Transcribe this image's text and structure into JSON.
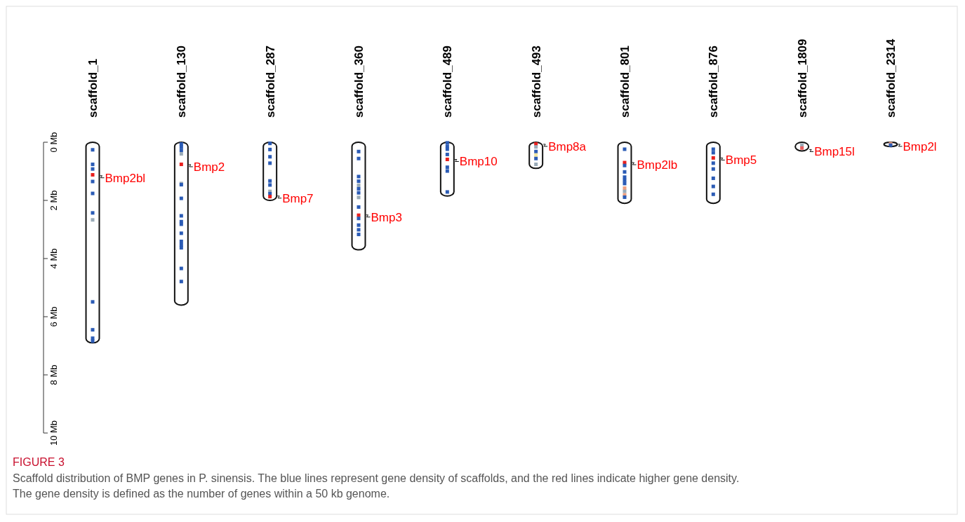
{
  "chart_data": {
    "type": "bar",
    "categories": [
      "scaffold_1",
      "scaffold_130",
      "scaffold_287",
      "scaffold_360",
      "scaffold_489",
      "scaffold_493",
      "scaffold_801",
      "scaffold_876",
      "scaffold_1809",
      "scaffold_2314"
    ],
    "ylim": [
      10,
      0
    ],
    "yticks": [
      {
        "value": 0,
        "label": "0 Mb"
      },
      {
        "value": 2,
        "label": "2 Mb"
      },
      {
        "value": 4,
        "label": "4 Mb"
      },
      {
        "value": 6,
        "label": "6 Mb"
      },
      {
        "value": 8,
        "label": "8 Mb"
      },
      {
        "value": 10,
        "label": "10 Mb"
      }
    ],
    "series": [
      {
        "type": "bar",
        "color": "#ffffff",
        "values": [
          6.9,
          5.6,
          2.0,
          3.7,
          1.85,
          0.9,
          2.1,
          2.1,
          0.3,
          0.15
        ]
      },
      {
        "type": "scatter",
        "marker": "square",
        "x": [
          "scaffold_1",
          "scaffold_1",
          "scaffold_1",
          "scaffold_1",
          "scaffold_1",
          "scaffold_1",
          "scaffold_1",
          "scaffold_1",
          "scaffold_1",
          "scaffold_1",
          "scaffold_1",
          "scaffold_1",
          "scaffold_130",
          "scaffold_130",
          "scaffold_130",
          "scaffold_130",
          "scaffold_130",
          "scaffold_130",
          "scaffold_130",
          "scaffold_130",
          "scaffold_130",
          "scaffold_130",
          "scaffold_130",
          "scaffold_130",
          "scaffold_130",
          "scaffold_130",
          "scaffold_130",
          "scaffold_130",
          "scaffold_130",
          "scaffold_287",
          "scaffold_287",
          "scaffold_287",
          "scaffold_287",
          "scaffold_287",
          "scaffold_287",
          "scaffold_287",
          "scaffold_287",
          "scaffold_287",
          "scaffold_360",
          "scaffold_360",
          "scaffold_360",
          "scaffold_360",
          "scaffold_360",
          "scaffold_360",
          "scaffold_360",
          "scaffold_360",
          "scaffold_360",
          "scaffold_360",
          "scaffold_360",
          "scaffold_360",
          "scaffold_360",
          "scaffold_360",
          "scaffold_489",
          "scaffold_489",
          "scaffold_489",
          "scaffold_489",
          "scaffold_489",
          "scaffold_489",
          "scaffold_489",
          "scaffold_489",
          "scaffold_493",
          "scaffold_493",
          "scaffold_493",
          "scaffold_493",
          "scaffold_493",
          "scaffold_493",
          "scaffold_801",
          "scaffold_801",
          "scaffold_801",
          "scaffold_801",
          "scaffold_801",
          "scaffold_801",
          "scaffold_801",
          "scaffold_801",
          "scaffold_801",
          "scaffold_801",
          "scaffold_801",
          "scaffold_876",
          "scaffold_876",
          "scaffold_876",
          "scaffold_876",
          "scaffold_876",
          "scaffold_876",
          "scaffold_876",
          "scaffold_876",
          "scaffold_1809",
          "scaffold_1809",
          "scaffold_2314",
          "scaffold_2314"
        ],
        "values": [
          0.26,
          0.76,
          0.92,
          1.12,
          1.35,
          1.76,
          2.43,
          2.67,
          5.49,
          6.45,
          6.74,
          6.84,
          0.06,
          0.16,
          0.28,
          0.4,
          0.76,
          1.42,
          1.46,
          1.93,
          2.53,
          2.73,
          2.82,
          3.13,
          3.41,
          3.53,
          3.63,
          4.34,
          4.79,
          0.04,
          0.25,
          0.5,
          0.72,
          1.33,
          1.47,
          1.69,
          1.77,
          1.87,
          0.32,
          0.56,
          1.18,
          1.34,
          1.48,
          1.6,
          1.74,
          1.9,
          2.23,
          2.51,
          2.62,
          2.85,
          3.01,
          3.17,
          0.02,
          0.14,
          0.24,
          0.42,
          0.59,
          0.86,
          0.99,
          1.71,
          0.06,
          0.16,
          0.32,
          0.44,
          0.56,
          0.76,
          0.24,
          0.7,
          0.8,
          1.02,
          1.2,
          1.31,
          1.42,
          1.58,
          1.69,
          1.81,
          1.89,
          0.24,
          0.36,
          0.54,
          0.72,
          0.92,
          1.24,
          1.52,
          1.79,
          0.1,
          0.2,
          0.05,
          0.1
        ],
        "colors": [
          "#2b5bb5",
          "#2b5bb5",
          "#2b5bb5",
          "#e8201e",
          "#2b5bb5",
          "#2b5bb5",
          "#2b5bb5",
          "#9aabb8",
          "#2b5bb5",
          "#2b5bb5",
          "#2b5bb5",
          "#2b5bb5",
          "#2b5bb5",
          "#2b5bb5",
          "#2b5bb5",
          "#9aabb8",
          "#e8201e",
          "#9aabb8",
          "#2b5bb5",
          "#2b5bb5",
          "#2b5bb5",
          "#2b5bb5",
          "#2b5bb5",
          "#2b5bb5",
          "#2b5bb5",
          "#2b5bb5",
          "#2b5bb5",
          "#2b5bb5",
          "#2b5bb5",
          "#2b5bb5",
          "#2b5bb5",
          "#2b5bb5",
          "#2b5bb5",
          "#2b5bb5",
          "#2b5bb5",
          "#9aabb8",
          "#2b5bb5",
          "#e8201e",
          "#2b5bb5",
          "#2b5bb5",
          "#2b5bb5",
          "#2b5bb5",
          "#9aabb8",
          "#2b5bb5",
          "#2b5bb5",
          "#9aabb8",
          "#2b5bb5",
          "#e8201e",
          "#2b5bb5",
          "#2b5bb5",
          "#2b5bb5",
          "#2b5bb5",
          "#2b5bb5",
          "#2b5bb5",
          "#2b5bb5",
          "#2b5bb5",
          "#e8201e",
          "#2b5bb5",
          "#2b5bb5",
          "#2b5bb5",
          "#e8201e",
          "#9aabb8",
          "#2b5bb5",
          "#f0e6a0",
          "#2b5bb5",
          "#9aabb8",
          "#2b5bb5",
          "#e8201e",
          "#2b5bb5",
          "#2b5bb5",
          "#2b5bb5",
          "#2b5bb5",
          "#2b5bb5",
          "#f0a080",
          "#9aabb8",
          "#f0a080",
          "#2b5bb5",
          "#2b5bb5",
          "#2b5bb5",
          "#e8201e",
          "#2b5bb5",
          "#2b5bb5",
          "#2b5bb5",
          "#2b5bb5",
          "#2b5bb5",
          "#9aabb8",
          "#e86060",
          "#f0a080",
          "#2b5bb5"
        ]
      }
    ],
    "annotations": [
      {
        "text": "Bmp2bl",
        "x": "scaffold_1",
        "y": 1.15
      },
      {
        "text": "Bmp2",
        "x": "scaffold_130",
        "y": 0.77
      },
      {
        "text": "Bmp7",
        "x": "scaffold_287",
        "y": 1.85
      },
      {
        "text": "Bmp3",
        "x": "scaffold_360",
        "y": 2.5
      },
      {
        "text": "Bmp10",
        "x": "scaffold_489",
        "y": 0.59
      },
      {
        "text": "Bmp8a",
        "x": "scaffold_493",
        "y": 0.07
      },
      {
        "text": "Bmp2lb",
        "x": "scaffold_801",
        "y": 0.7
      },
      {
        "text": "Bmp5",
        "x": "scaffold_876",
        "y": 0.54
      },
      {
        "text": "Bmp15l",
        "x": "scaffold_1809",
        "y": 0.25
      },
      {
        "text": "Bmp2l",
        "x": "scaffold_2314",
        "y": 0.07
      },
      "FIGURE 3",
      "Scaffold distribution of BMP genes in P. sinensis. The blue lines represent gene density of scaffolds, and the red lines indicate higher gene density. The gene density is defined as the number of genes within a 50 kb genome."
    ]
  }
}
